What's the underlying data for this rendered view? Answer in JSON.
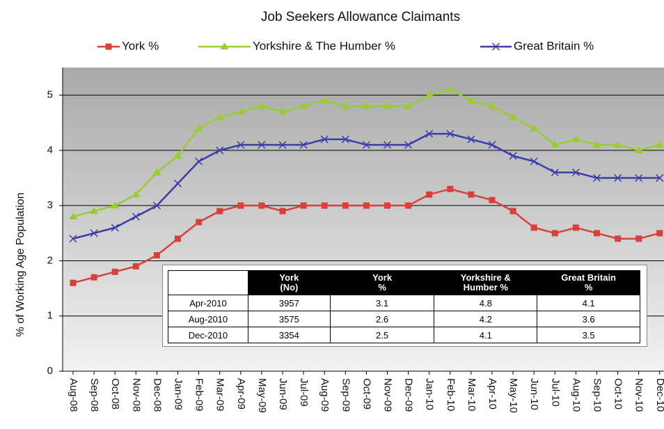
{
  "chart_data": {
    "type": "line",
    "title": "Job Seekers Allowance Claimants",
    "y_label": "% of Working Age Population",
    "categories": [
      "Aug-08",
      "Sep-08",
      "Oct-08",
      "Nov-08",
      "Dec-08",
      "Jan-09",
      "Feb-09",
      "Mar-09",
      "Apr-09",
      "May-09",
      "Jun-09",
      "Jul-09",
      "Aug-09",
      "Sep-09",
      "Oct-09",
      "Nov-09",
      "Dec-09",
      "Jan-10",
      "Feb-10",
      "Mar-10",
      "Apr-10",
      "May-10",
      "Jun-10",
      "Jul-10",
      "Aug-10",
      "Sep-10",
      "Oct-10",
      "Nov-10",
      "Dec-10"
    ],
    "series": [
      {
        "name": "York %",
        "color": "#d9403c",
        "marker": "square",
        "values": [
          1.6,
          1.7,
          1.8,
          1.9,
          2.1,
          2.4,
          2.7,
          2.9,
          3.0,
          3.0,
          2.9,
          3.0,
          3.0,
          3.0,
          3.0,
          3.0,
          3.0,
          3.2,
          3.3,
          3.2,
          3.1,
          2.9,
          2.6,
          2.5,
          2.6,
          2.5,
          2.4,
          2.4,
          2.5
        ]
      },
      {
        "name": "Yorkshire & The Humber %",
        "color": "#99cc33",
        "marker": "triangle",
        "values": [
          2.8,
          2.9,
          3.0,
          3.2,
          3.6,
          3.9,
          4.4,
          4.6,
          4.7,
          4.8,
          4.7,
          4.8,
          4.9,
          4.8,
          4.8,
          4.8,
          4.8,
          5.0,
          5.1,
          4.9,
          4.8,
          4.6,
          4.4,
          4.1,
          4.2,
          4.1,
          4.1,
          4.0,
          4.1
        ]
      },
      {
        "name": "Great Britain %",
        "color": "#3c3ca8",
        "marker": "x",
        "values": [
          2.4,
          2.5,
          2.6,
          2.8,
          3.0,
          3.4,
          3.8,
          4.0,
          4.1,
          4.1,
          4.1,
          4.1,
          4.2,
          4.2,
          4.1,
          4.1,
          4.1,
          4.3,
          4.3,
          4.2,
          4.1,
          3.9,
          3.8,
          3.6,
          3.6,
          3.5,
          3.5,
          3.5,
          3.5
        ]
      }
    ],
    "ylim": [
      0,
      5.5
    ],
    "yticks": [
      0,
      1,
      2,
      3,
      4,
      5
    ],
    "grid": true,
    "legend": "top",
    "table": {
      "header": [
        "",
        "York\n(No)",
        "York\n%",
        "Yorkshire &\nHumber %",
        "Great Britain\n%"
      ],
      "rows": [
        [
          "Apr-2010",
          3957,
          3.1,
          4.8,
          4.1
        ],
        [
          "Aug-2010",
          3575,
          2.6,
          4.2,
          3.6
        ],
        [
          "Dec-2010",
          3354,
          2.5,
          4.1,
          3.5
        ]
      ]
    }
  }
}
